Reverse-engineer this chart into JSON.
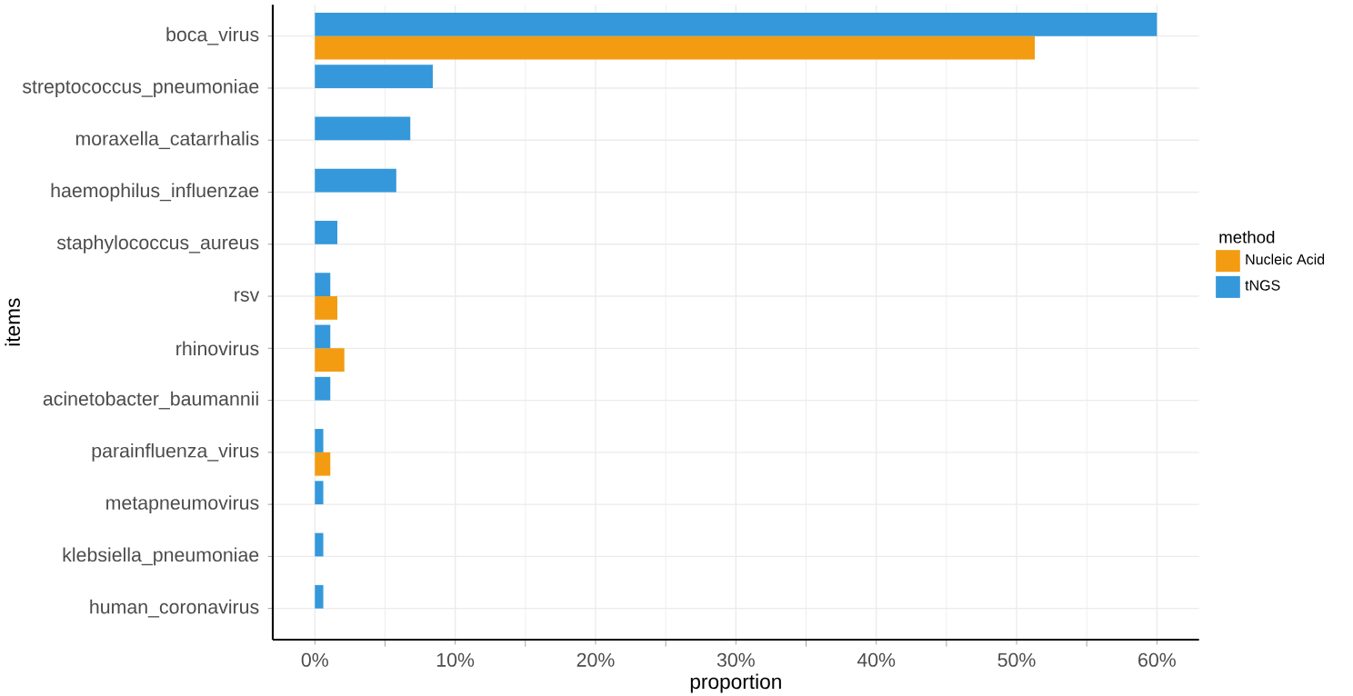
{
  "chart_data": {
    "type": "bar",
    "orientation": "horizontal",
    "xlabel": "proportion",
    "ylabel": "items",
    "legend_title": "method",
    "legend": "right",
    "grid": true,
    "categories": [
      "boca_virus",
      "streptococcus_pneumoniae",
      "moraxella_catarrhalis",
      "haemophilus_influenzae",
      "staphylococcus_aureus",
      "rsv",
      "rhinovirus",
      "acinetobacter_baumannii",
      "parainfluenza_virus",
      "metapneumovirus",
      "klebsiella_pneumoniae",
      "human_coronavirus"
    ],
    "series": [
      {
        "name": "Nucleic Acid",
        "color": "#f39c12",
        "values": [
          51.3,
          null,
          null,
          null,
          null,
          1.6,
          2.1,
          null,
          1.1,
          null,
          null,
          null
        ]
      },
      {
        "name": "tNGS",
        "color": "#3498db",
        "values": [
          60,
          8.4,
          6.8,
          5.8,
          1.6,
          1.1,
          1.1,
          1.1,
          0.6,
          0.6,
          0.6,
          0.6
        ]
      }
    ],
    "xlim": [
      -3,
      63
    ],
    "xticks": [
      {
        "value": 0,
        "label": "0%"
      },
      {
        "value": 10,
        "label": "10%"
      },
      {
        "value": 20,
        "label": "20%"
      },
      {
        "value": 30,
        "label": "30%"
      },
      {
        "value": 40,
        "label": "40%"
      },
      {
        "value": 50,
        "label": "50%"
      },
      {
        "value": 60,
        "label": "60%"
      }
    ]
  }
}
